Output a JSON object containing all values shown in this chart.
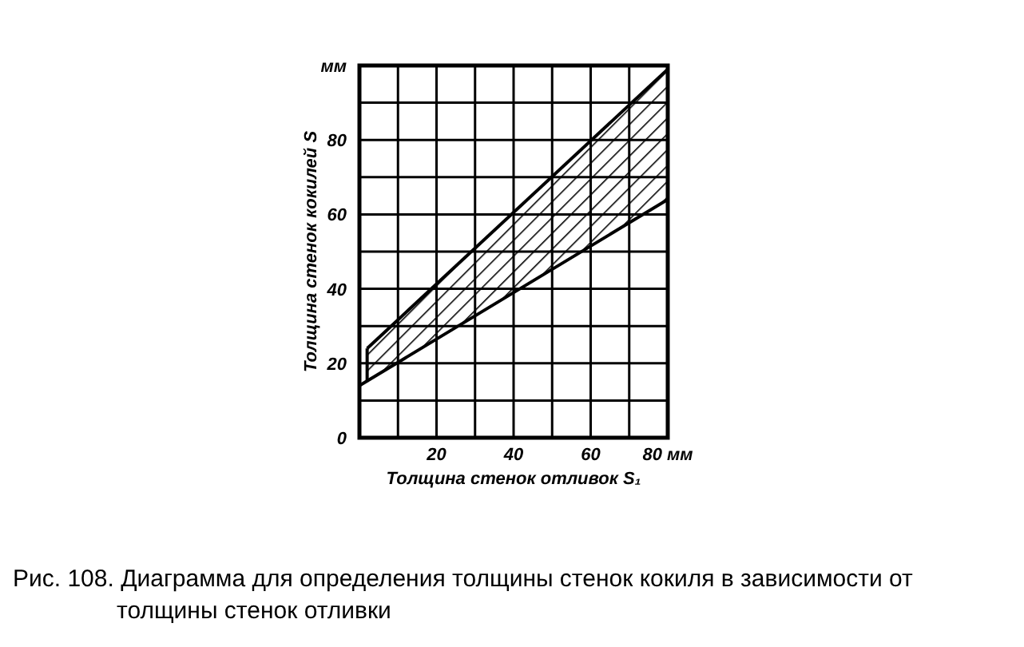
{
  "chart_data": {
    "type": "line",
    "xlabel": "Толщина стенок отливок S₁",
    "ylabel": "Толщина стенок кокилей S",
    "xlim": [
      0,
      80
    ],
    "ylim": [
      0,
      100
    ],
    "xticks": [
      {
        "value": 10,
        "label": null
      },
      20,
      {
        "value": 30,
        "label": null
      },
      40,
      {
        "value": 50,
        "label": null
      },
      60,
      {
        "value": 70,
        "label": null
      },
      {
        "value": 80,
        "label": "80 мм"
      }
    ],
    "yticks": [
      0,
      {
        "value": 10,
        "label": null
      },
      20,
      {
        "value": 30,
        "label": null
      },
      40,
      {
        "value": 50,
        "label": null
      },
      60,
      {
        "value": 70,
        "label": null
      },
      80,
      {
        "value": 90,
        "label": null
      },
      {
        "value": 100,
        "label": "мм"
      }
    ],
    "grid": true,
    "series": [
      {
        "color": "#000000",
        "x": [
          0,
          80
        ],
        "values": [
          14,
          64
        ]
      },
      {
        "type": "line",
        "color": "#000000",
        "x": [
          2,
          80
        ],
        "values": [
          24,
          99
        ],
        "lower": [
          15,
          64
        ],
        "upper": [
          24,
          99
        ]
      }
    ],
    "annotations": [
      "Рис. 108. Диаграмма  для определения толщины стенок  кокиля  в зависимости от толщины стенок отливки"
    ]
  }
}
